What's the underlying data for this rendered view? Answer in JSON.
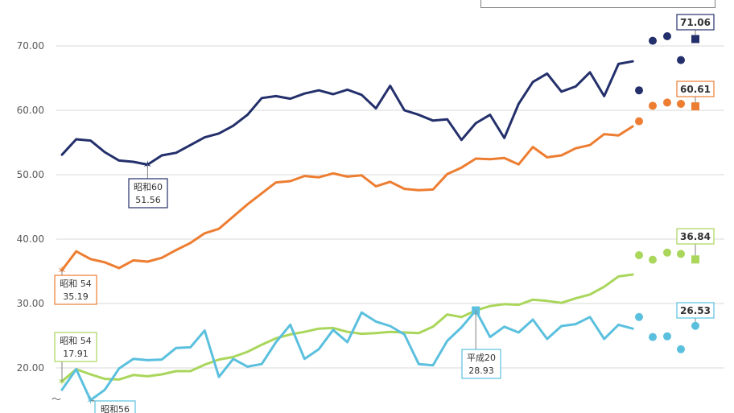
{
  "chart_data": {
    "type": "line",
    "title": "",
    "xlabel": "",
    "ylabel": "",
    "ylim": [
      15,
      75
    ],
    "yticks": [
      "20.00",
      "30.00",
      "40.00",
      "50.00",
      "60.00",
      "70.00"
    ],
    "axis_break_mark": "〜",
    "grid": true,
    "series": [
      {
        "color": "#24306b",
        "values": [
          53.1,
          55.5,
          55.3,
          53.5,
          52.2,
          52.0,
          51.56,
          53.0,
          53.4,
          54.6,
          55.8,
          56.4,
          57.6,
          59.3,
          61.9,
          62.2,
          61.8,
          62.6,
          63.1,
          62.5,
          63.2,
          62.4,
          60.3,
          63.8,
          60.0,
          59.3,
          58.4,
          58.6,
          55.4,
          58.0,
          59.3,
          55.7,
          61.0,
          64.4,
          65.7,
          62.9,
          63.7,
          65.9,
          62.2,
          67.2,
          67.6
        ],
        "projection": [
          63.1,
          70.8,
          71.5,
          67.8,
          71.06
        ],
        "end_label": "71.06"
      },
      {
        "color": "#ed7d31",
        "values": [
          35.19,
          38.1,
          36.9,
          36.4,
          35.5,
          36.7,
          36.5,
          37.1,
          38.3,
          39.4,
          40.9,
          41.6,
          43.5,
          45.4,
          47.1,
          48.8,
          49.0,
          49.8,
          49.6,
          50.2,
          49.7,
          49.9,
          48.2,
          48.9,
          47.8,
          47.6,
          47.7,
          50.1,
          51.1,
          52.5,
          52.4,
          52.6,
          51.6,
          54.3,
          52.7,
          53.0,
          54.1,
          54.6,
          56.3,
          56.1,
          57.5
        ],
        "projection": [
          58.3,
          60.7,
          61.2,
          61.0,
          60.61
        ],
        "end_label": "60.61"
      },
      {
        "color": "#a9d65b",
        "values": [
          17.91,
          19.8,
          19.0,
          18.3,
          18.2,
          18.9,
          18.7,
          19.0,
          19.5,
          19.5,
          20.5,
          21.3,
          21.7,
          22.5,
          23.6,
          24.6,
          25.2,
          25.6,
          26.1,
          26.2,
          25.6,
          25.3,
          25.4,
          25.6,
          25.5,
          25.4,
          26.4,
          28.3,
          27.9,
          28.93,
          29.6,
          29.9,
          29.8,
          30.6,
          30.4,
          30.1,
          30.8,
          31.4,
          32.6,
          34.2,
          34.5
        ],
        "projection": [
          37.5,
          36.8,
          37.9,
          37.7,
          36.84
        ],
        "end_label": "36.84"
      },
      {
        "color": "#5bc0de",
        "values": [
          16.6,
          19.8,
          15.0,
          16.6,
          19.9,
          21.4,
          21.2,
          21.3,
          23.1,
          23.2,
          25.8,
          18.6,
          21.4,
          20.2,
          20.6,
          24.0,
          26.7,
          21.4,
          22.9,
          25.9,
          24.0,
          28.6,
          27.2,
          26.5,
          25.2,
          20.6,
          20.4,
          24.2,
          26.3,
          28.93,
          24.8,
          26.4,
          25.5,
          27.5,
          24.5,
          26.5,
          26.8,
          27.9,
          24.5,
          26.7,
          26.1
        ],
        "projection": [
          27.9,
          24.8,
          24.9,
          22.9,
          26.53
        ],
        "end_label": "26.53"
      }
    ],
    "callouts": [
      {
        "label": "昭和60",
        "value": "51.56"
      },
      {
        "label": "昭和 54",
        "value": "35.19"
      },
      {
        "label": "昭和 54",
        "value": "17.91"
      },
      {
        "label": "平成20",
        "value": "28.93"
      },
      {
        "label": "昭和56",
        "value": ""
      }
    ]
  }
}
